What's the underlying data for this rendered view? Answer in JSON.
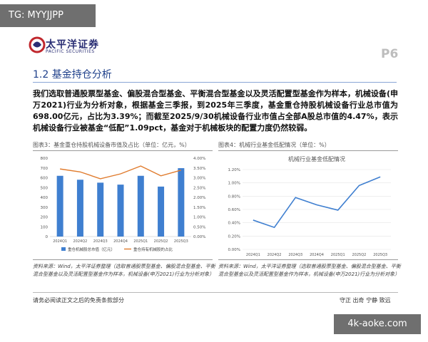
{
  "overlays": {
    "telegram": "TG: MYYJJPP",
    "watermark": "4k-aoke.com"
  },
  "header": {
    "logo_text": "太平洋证券",
    "logo_sub": "PACIFIC SECURITIES",
    "page_number": "P6"
  },
  "section": {
    "title": "1.2 基金持仓分析"
  },
  "body": {
    "paragraph": "我们选取普通股票型基金、偏股混合型基金、平衡混合型基金以及灵活配置型基金作为样本，机械设备(申万2021)行业为分析对象，根据基金三季报，到2025年三季度，基金重仓持股机械设备行业总市值为698.00亿元，占比为3.39%；而截至2025/9/30机械设备行业市值占全部A股总市值的4.47%，表示机械设备行业被基金“低配”1.09pct，基金对于机械板块的配置力度仍然较弱。"
  },
  "figures": {
    "fig3_title": "图表3：基金重仓持股机械设备市值及占比（单位：亿元，%）",
    "fig4_title": "图表4：机械行业基金低配情况（单位：%）",
    "source_left": "资料来源：Wind，太平洋证券整理（选取普通股票型基金、偏股混合型基金、平衡混合型基金以及灵活配置型基金作为样本，机械设备(申万2021)行业为分析对象）",
    "source_right": "资料来源：Wind，太平洋证券整理（选取普通股票型基金、偏股混合型基金、平衡混合型基金以及灵活配置型基金作为样本，机械设备(申万2021)行业为分析对象）"
  },
  "footer": {
    "disclaimer": "请务必阅读正文之后的免责条款部分",
    "motto": "守正 出奇 宁静 致远"
  },
  "chart_data": [
    {
      "type": "bar",
      "categories": [
        "2024Q1",
        "2024Q2",
        "2024Q3",
        "2024Q4",
        "2025Q1",
        "2025Q2",
        "2025Q3"
      ],
      "series": [
        {
          "name": "重仓机械股总市值（亿元）",
          "kind": "bar",
          "axis": "left",
          "color": "#3f7fd0",
          "values": [
            620,
            580,
            550,
            530,
            620,
            510,
            698
          ]
        },
        {
          "name": "重仓持有机械股的占比",
          "kind": "line",
          "axis": "right",
          "color": "#e07b2d",
          "values": [
            3.45,
            3.3,
            2.95,
            3.2,
            3.6,
            3.1,
            3.39
          ]
        }
      ],
      "ylim": [
        0,
        800
      ],
      "yticks": [
        "0",
        "100",
        "200",
        "300",
        "400",
        "500",
        "600",
        "700",
        "800"
      ],
      "y2lim": [
        0,
        4.0
      ],
      "y2ticks": [
        "0.00%",
        "0.50%",
        "1.00%",
        "1.50%",
        "2.00%",
        "2.50%",
        "3.00%",
        "3.50%",
        "4.00%"
      ],
      "legend_position": "bottom"
    },
    {
      "type": "line",
      "title": "机械行业基金低配情况",
      "categories": [
        "2024Q1",
        "2024Q2",
        "2024Q3",
        "2024Q4",
        "2025Q1",
        "2025Q2",
        "2025Q3"
      ],
      "series": [
        {
          "color": "#3f7fd0",
          "values": [
            0.44,
            0.33,
            0.78,
            0.67,
            0.59,
            0.96,
            1.09
          ]
        }
      ],
      "ylim": [
        0,
        1.2
      ],
      "yticks": [
        "0.00%",
        "0.20%",
        "0.40%",
        "0.60%",
        "0.80%",
        "1.00%",
        "1.20%"
      ],
      "grid": true
    }
  ]
}
